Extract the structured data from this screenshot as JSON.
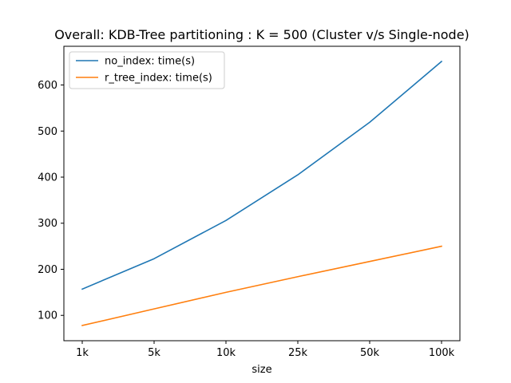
{
  "chart_data": {
    "type": "line",
    "title": "Overall: KDB-Tree partitioning : K = 500 (Cluster v/s Single-node)",
    "xlabel": "size",
    "ylabel": "",
    "categories": [
      "1k",
      "5k",
      "10k",
      "25k",
      "50k",
      "100k"
    ],
    "yticks": [
      100,
      200,
      300,
      400,
      500,
      600
    ],
    "ylim": [
      45,
      684
    ],
    "grid": false,
    "legend_position": "top-left",
    "series": [
      {
        "name": "no_index: time(s)",
        "color": "#1f77b4",
        "values": [
          157,
          223,
          306,
          405,
          519,
          651
        ]
      },
      {
        "name": "r_tree_index: time(s)",
        "color": "#ff7f0e",
        "values": [
          78,
          114,
          150,
          184,
          217,
          250
        ]
      }
    ]
  }
}
